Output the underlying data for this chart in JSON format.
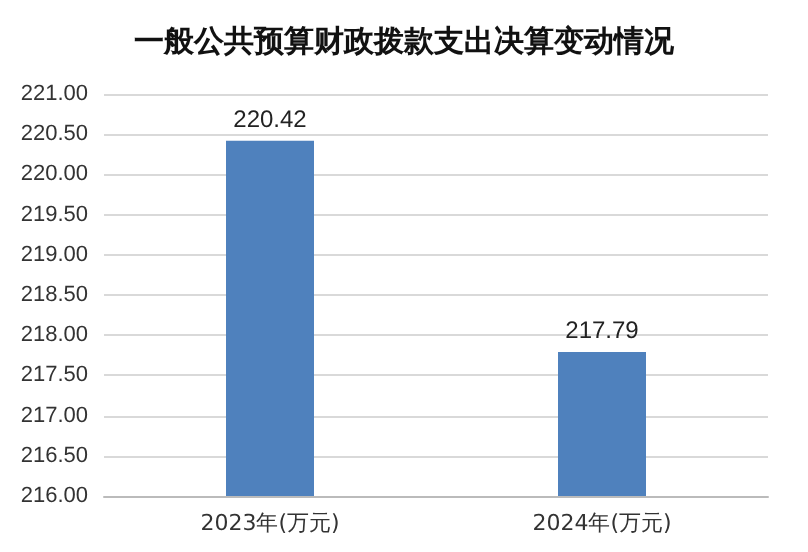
{
  "chart_data": {
    "type": "bar",
    "title": "一般公共预算财政拨款支出决算变动情况",
    "categories": [
      "2023年(万元)",
      "2024年(万元)"
    ],
    "values": [
      220.42,
      217.79
    ],
    "color": "#4f81bd",
    "ylim": [
      216,
      221
    ],
    "yticks": [
      {
        "value": 216,
        "label": "216.00"
      },
      {
        "value": 216.5,
        "label": "216.50"
      },
      {
        "value": 217,
        "label": "217.00"
      },
      {
        "value": 217.5,
        "label": "217.50"
      },
      {
        "value": 218,
        "label": "218.00"
      },
      {
        "value": 218.5,
        "label": "218.50"
      },
      {
        "value": 219,
        "label": "219.00"
      },
      {
        "value": 219.5,
        "label": "219.50"
      },
      {
        "value": 220,
        "label": "220.00"
      },
      {
        "value": 220.5,
        "label": "220.50"
      },
      {
        "value": 221,
        "label": "221.00"
      }
    ],
    "grid": "y",
    "data_labels": true
  }
}
